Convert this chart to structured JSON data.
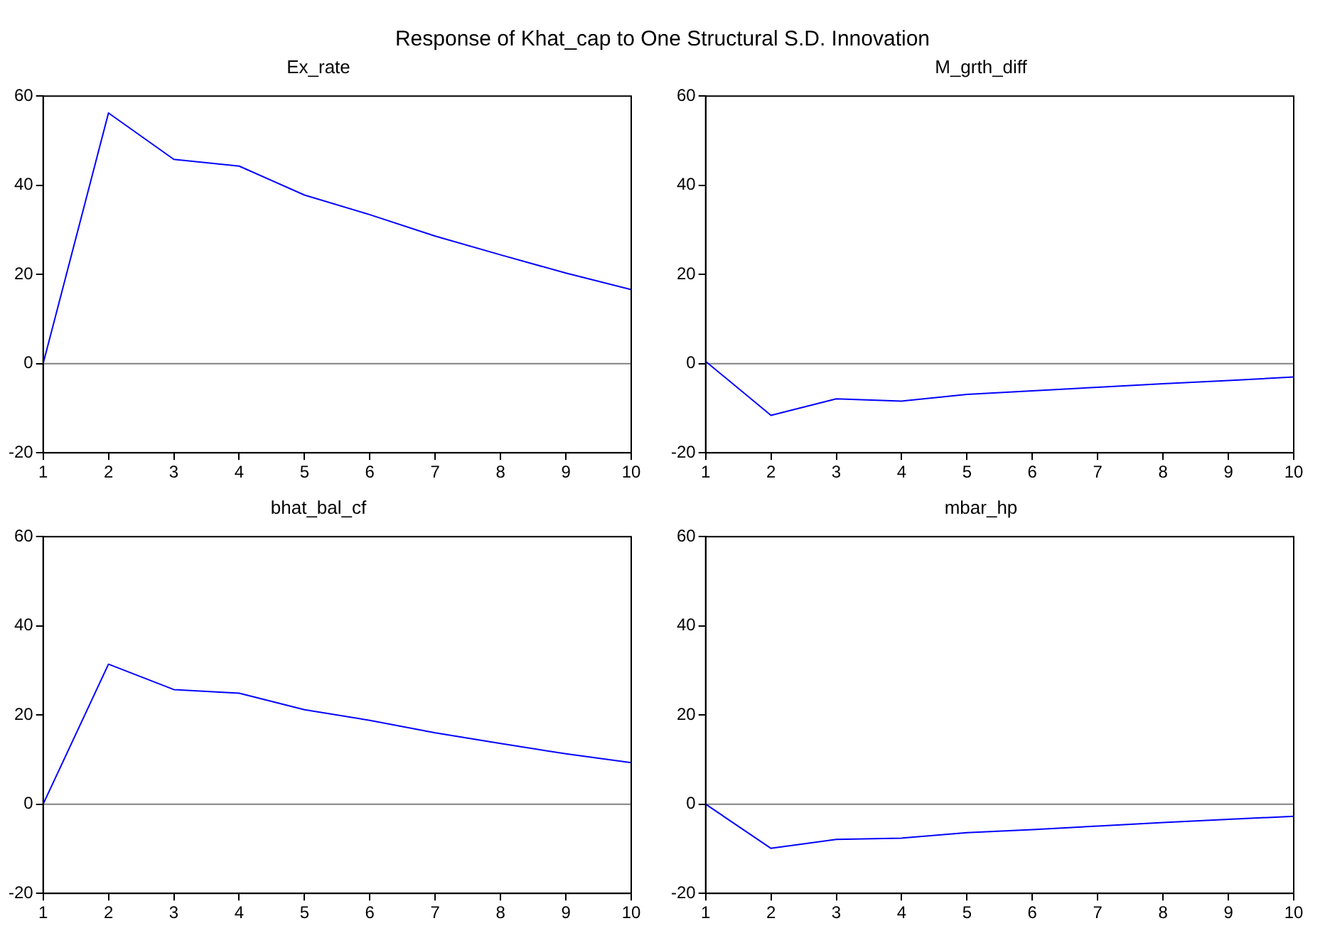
{
  "chart_data": [
    {
      "type": "line",
      "title": "Ex_rate",
      "annotations": [
        "Response of Khat_cap to One Structural  S.D. Innovation"
      ],
      "x": [
        1,
        2,
        3,
        4,
        5,
        6,
        7,
        8,
        9,
        10
      ],
      "xlim": [
        1,
        10
      ],
      "xticks": [
        1,
        2,
        3,
        4,
        5,
        6,
        7,
        8,
        9,
        10
      ],
      "ylim": [
        -20,
        60
      ],
      "yticks": [
        -20,
        0,
        20,
        40,
        60
      ],
      "grid": false,
      "legend": false,
      "marker": "none",
      "line_style": "solid",
      "series": [
        {
          "color": "#0000ff",
          "values": [
            0,
            56.2,
            45.8,
            44.3,
            37.8,
            33.4,
            28.6,
            24.4,
            20.3,
            16.6
          ]
        }
      ],
      "ref_lines": [
        {
          "axis": "y",
          "value": 0,
          "color": "#808080"
        }
      ]
    },
    {
      "type": "line",
      "title": "M_grth_diff",
      "x": [
        1,
        2,
        3,
        4,
        5,
        6,
        7,
        8,
        9,
        10
      ],
      "xlim": [
        1,
        10
      ],
      "xticks": [
        1,
        2,
        3,
        4,
        5,
        6,
        7,
        8,
        9,
        10
      ],
      "ylim": [
        -20,
        60
      ],
      "yticks": [
        -20,
        0,
        20,
        40,
        60
      ],
      "grid": false,
      "legend": false,
      "marker": "none",
      "line_style": "solid",
      "series": [
        {
          "color": "#0000ff",
          "values": [
            0.5,
            -11.6,
            -7.9,
            -8.4,
            -6.9,
            -6.1,
            -5.3,
            -4.5,
            -3.8,
            -3.0
          ]
        }
      ],
      "ref_lines": [
        {
          "axis": "y",
          "value": 0,
          "color": "#808080"
        }
      ]
    },
    {
      "type": "line",
      "title": "bhat_bal_cf",
      "x": [
        1,
        2,
        3,
        4,
        5,
        6,
        7,
        8,
        9,
        10
      ],
      "xlim": [
        1,
        10
      ],
      "xticks": [
        1,
        2,
        3,
        4,
        5,
        6,
        7,
        8,
        9,
        10
      ],
      "ylim": [
        -20,
        60
      ],
      "yticks": [
        -20,
        0,
        20,
        40,
        60
      ],
      "grid": false,
      "legend": false,
      "marker": "none",
      "line_style": "solid",
      "series": [
        {
          "color": "#0000ff",
          "values": [
            0,
            31.4,
            25.7,
            24.9,
            21.2,
            18.8,
            16.0,
            13.6,
            11.3,
            9.3
          ]
        }
      ],
      "ref_lines": [
        {
          "axis": "y",
          "value": 0,
          "color": "#808080"
        }
      ]
    },
    {
      "type": "line",
      "title": "mbar_hp",
      "x": [
        1,
        2,
        3,
        4,
        5,
        6,
        7,
        8,
        9,
        10
      ],
      "xlim": [
        1,
        10
      ],
      "xticks": [
        1,
        2,
        3,
        4,
        5,
        6,
        7,
        8,
        9,
        10
      ],
      "ylim": [
        -20,
        60
      ],
      "yticks": [
        -20,
        0,
        20,
        40,
        60
      ],
      "grid": false,
      "legend": false,
      "marker": "none",
      "line_style": "solid",
      "series": [
        {
          "color": "#0000ff",
          "values": [
            0,
            -9.9,
            -7.9,
            -7.6,
            -6.4,
            -5.7,
            -4.9,
            -4.1,
            -3.4,
            -2.7
          ]
        }
      ],
      "ref_lines": [
        {
          "axis": "y",
          "value": 0,
          "color": "#808080"
        }
      ]
    }
  ]
}
